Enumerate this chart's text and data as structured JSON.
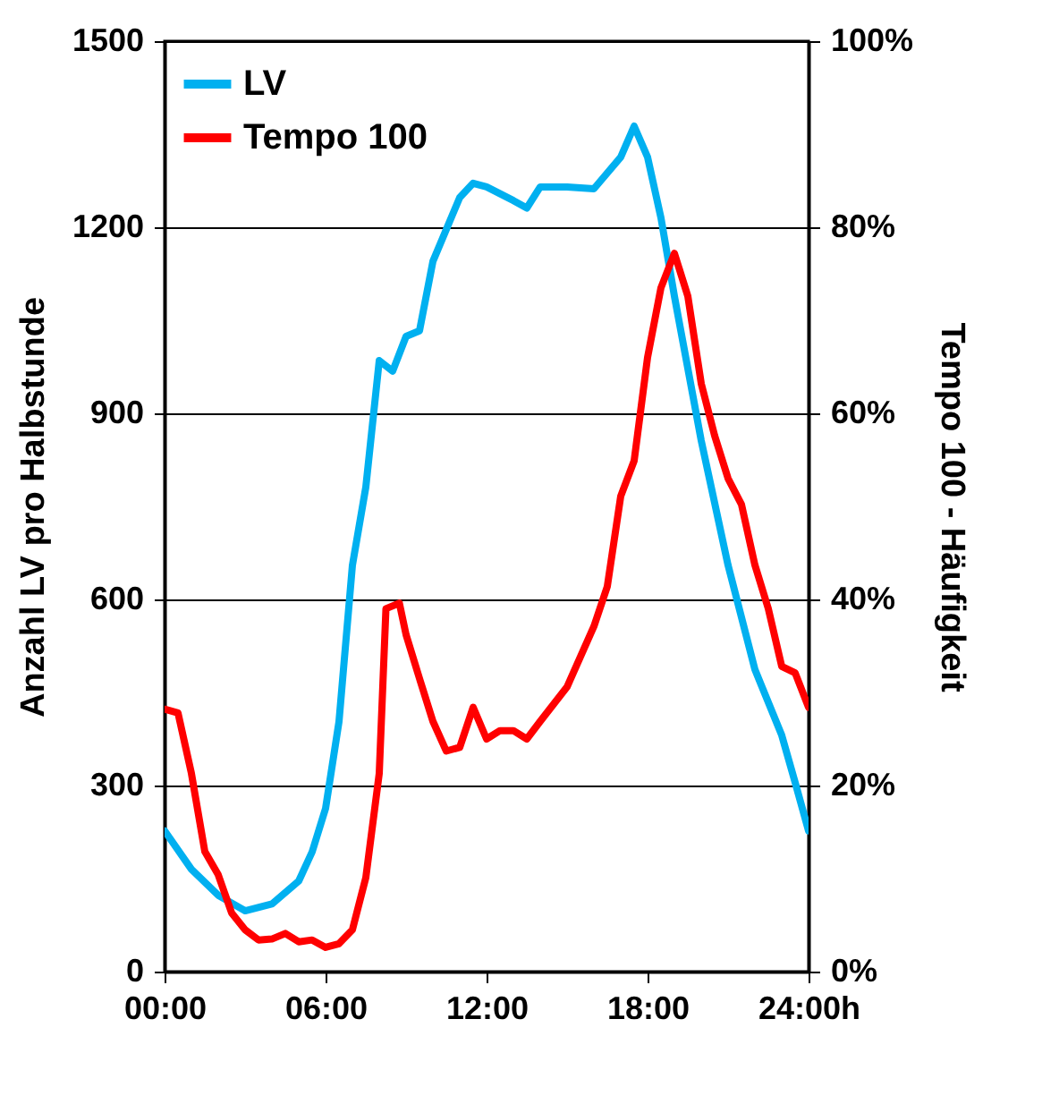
{
  "chart_data": {
    "type": "line",
    "ylabel": "Anzahl LV pro Halbstunde",
    "y2label": "Tempo 100 - Häufigkeit",
    "xlim": [
      0,
      24
    ],
    "xticks": [
      {
        "value": 0,
        "label": "00:00"
      },
      {
        "value": 6,
        "label": "06:00"
      },
      {
        "value": 12,
        "label": "12:00"
      },
      {
        "value": 18,
        "label": "18:00"
      },
      {
        "value": 24,
        "label": "24:00h"
      }
    ],
    "ylim": [
      0,
      1500
    ],
    "yticks": [
      0,
      300,
      600,
      900,
      1200,
      1500
    ],
    "y2lim": [
      0,
      100
    ],
    "y2ticks": [
      {
        "value": 0,
        "label": "0%"
      },
      {
        "value": 20,
        "label": "20%"
      },
      {
        "value": 40,
        "label": "40%"
      },
      {
        "value": 60,
        "label": "60%"
      },
      {
        "value": 80,
        "label": "80%"
      },
      {
        "value": 100,
        "label": "100%"
      }
    ],
    "grid": "y",
    "legend": "top left",
    "series": [
      {
        "name": "LV",
        "color": "#00b0f0",
        "x": [
          0,
          1,
          2,
          3,
          4,
          5,
          5.5,
          6,
          6.5,
          7,
          7.5,
          8,
          8.5,
          9,
          9.5,
          10,
          11,
          11.5,
          12,
          13,
          13.5,
          14,
          15,
          16,
          17,
          17.5,
          18,
          18.5,
          19,
          20,
          21,
          22,
          23,
          23.5,
          24
        ],
        "values": [
          227,
          165,
          123,
          98,
          109,
          146,
          193,
          263,
          403,
          655,
          781,
          985,
          968,
          1024,
          1033,
          1145,
          1248,
          1271,
          1265,
          1243,
          1231,
          1265,
          1265,
          1262,
          1313,
          1363,
          1313,
          1215,
          1089,
          856,
          655,
          487,
          381,
          305,
          227
        ]
      },
      {
        "name": "Tempo 100",
        "color": "#ff0000",
        "axis": "y2",
        "x": [
          0,
          0.5,
          1,
          1.5,
          2,
          2.5,
          3,
          3.5,
          4,
          4.5,
          5,
          5.5,
          6,
          6.5,
          7,
          7.5,
          8,
          8.25,
          8.75,
          9,
          9.5,
          10,
          10.5,
          11,
          11.5,
          12,
          12.5,
          13,
          13.5,
          14,
          15,
          16,
          16.5,
          17,
          17.5,
          18,
          18.5,
          19,
          19.5,
          20,
          20.5,
          21,
          21.5,
          22,
          22.5,
          23,
          23.5,
          24
        ],
        "values": [
          28.2,
          27.8,
          21.3,
          12.9,
          10.4,
          6.3,
          4.5,
          3.4,
          3.5,
          4.1,
          3.2,
          3.4,
          2.6,
          3.0,
          4.5,
          10.1,
          21.3,
          39,
          39.6,
          36.2,
          31.5,
          26.9,
          23.7,
          24.1,
          28.4,
          25,
          25.9,
          25.9,
          25,
          26.9,
          30.6,
          37.1,
          41.4,
          51.1,
          54.9,
          66,
          73.5,
          77.2,
          72.6,
          63.2,
          57.6,
          53,
          50.2,
          43.7,
          39,
          32.8,
          32.1,
          28.4
        ]
      }
    ]
  }
}
